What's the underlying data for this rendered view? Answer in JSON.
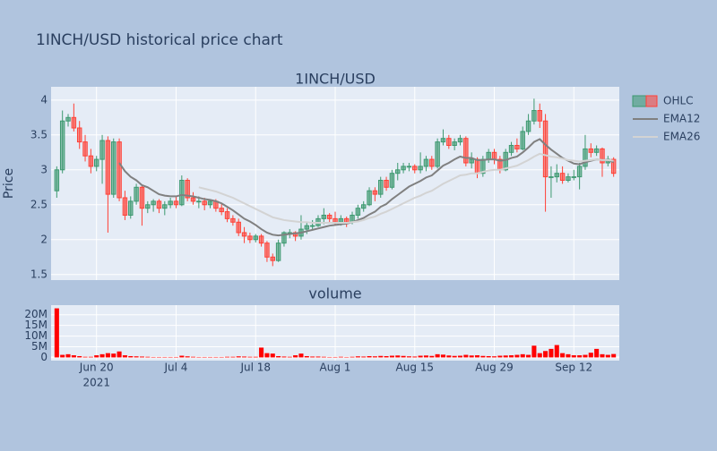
{
  "chart_data": {
    "type": "candlestick",
    "title": "1INCH/USD historical price chart",
    "panel_title": "1INCH/USD",
    "ylabel": "Price",
    "x": [
      "2021-06-13",
      "2021-06-14",
      "2021-06-15",
      "2021-06-16",
      "2021-06-17",
      "2021-06-18",
      "2021-06-19",
      "2021-06-20",
      "2021-06-21",
      "2021-06-22",
      "2021-06-23",
      "2021-06-24",
      "2021-06-25",
      "2021-06-26",
      "2021-06-27",
      "2021-06-28",
      "2021-06-29",
      "2021-06-30",
      "2021-07-01",
      "2021-07-02",
      "2021-07-03",
      "2021-07-04",
      "2021-07-05",
      "2021-07-06",
      "2021-07-07",
      "2021-07-08",
      "2021-07-09",
      "2021-07-10",
      "2021-07-11",
      "2021-07-12",
      "2021-07-13",
      "2021-07-14",
      "2021-07-15",
      "2021-07-16",
      "2021-07-17",
      "2021-07-18",
      "2021-07-19",
      "2021-07-20",
      "2021-07-21",
      "2021-07-22",
      "2021-07-23",
      "2021-07-24",
      "2021-07-25",
      "2021-07-26",
      "2021-07-27",
      "2021-07-28",
      "2021-07-29",
      "2021-07-30",
      "2021-07-31",
      "2021-08-01",
      "2021-08-02",
      "2021-08-03",
      "2021-08-04",
      "2021-08-05",
      "2021-08-06",
      "2021-08-07",
      "2021-08-08",
      "2021-08-09",
      "2021-08-10",
      "2021-08-11",
      "2021-08-12",
      "2021-08-13",
      "2021-08-14",
      "2021-08-15",
      "2021-08-16",
      "2021-08-17",
      "2021-08-18",
      "2021-08-19",
      "2021-08-20",
      "2021-08-21",
      "2021-08-22",
      "2021-08-23",
      "2021-08-24",
      "2021-08-25",
      "2021-08-26",
      "2021-08-27",
      "2021-08-28",
      "2021-08-29",
      "2021-08-30",
      "2021-08-31",
      "2021-09-01",
      "2021-09-02",
      "2021-09-03",
      "2021-09-04",
      "2021-09-05",
      "2021-09-06",
      "2021-09-07",
      "2021-09-08",
      "2021-09-09",
      "2021-09-10",
      "2021-09-11",
      "2021-09-12",
      "2021-09-13",
      "2021-09-14",
      "2021-09-15",
      "2021-09-16",
      "2021-09-17",
      "2021-09-18",
      "2021-09-19"
    ],
    "ohlc": {
      "name": "OHLC",
      "increasing_color": "#3d9970",
      "decreasing_color": "#ff4136",
      "open": [
        2.7,
        3.0,
        3.7,
        3.75,
        3.6,
        3.4,
        3.2,
        3.05,
        3.15,
        3.42,
        2.65,
        3.4,
        2.6,
        2.35,
        2.55,
        2.75,
        2.45,
        2.5,
        2.55,
        2.45,
        2.5,
        2.55,
        2.5,
        2.85,
        2.6,
        2.55,
        2.55,
        2.5,
        2.55,
        2.45,
        2.4,
        2.3,
        2.25,
        2.1,
        2.05,
        2.0,
        2.05,
        1.95,
        1.75,
        1.7,
        1.95,
        2.1,
        2.1,
        2.05,
        2.15,
        2.2,
        2.2,
        2.3,
        2.35,
        2.3,
        2.25,
        2.3,
        2.25,
        2.35,
        2.45,
        2.5,
        2.7,
        2.65,
        2.85,
        2.75,
        2.95,
        3.0,
        3.05,
        3.05,
        3.0,
        3.05,
        3.15,
        3.05,
        3.4,
        3.45,
        3.35,
        3.4,
        3.45,
        3.1,
        3.15,
        2.95,
        3.15,
        3.25,
        3.15,
        3.0,
        3.25,
        3.35,
        3.3,
        3.55,
        3.7,
        3.85,
        3.7,
        2.9,
        2.9,
        2.95,
        2.85,
        2.9,
        2.9,
        3.05,
        3.3,
        3.25,
        3.3,
        3.1,
        3.15
      ],
      "high": [
        3.05,
        3.85,
        3.8,
        3.95,
        3.7,
        3.5,
        3.3,
        3.2,
        3.5,
        3.48,
        3.45,
        3.45,
        2.7,
        2.62,
        2.8,
        2.78,
        2.55,
        2.58,
        2.58,
        2.55,
        2.6,
        2.62,
        2.92,
        2.88,
        2.68,
        2.62,
        2.6,
        2.58,
        2.58,
        2.52,
        2.45,
        2.35,
        2.3,
        2.18,
        2.1,
        2.08,
        2.08,
        1.98,
        1.8,
        2.0,
        2.12,
        2.15,
        2.12,
        2.35,
        2.25,
        2.28,
        2.35,
        2.45,
        2.38,
        2.4,
        2.35,
        2.33,
        2.4,
        2.5,
        2.55,
        2.75,
        2.75,
        2.9,
        2.9,
        3.0,
        3.1,
        3.1,
        3.1,
        3.08,
        3.25,
        3.2,
        3.2,
        3.45,
        3.58,
        3.5,
        3.45,
        3.5,
        3.48,
        3.25,
        3.18,
        3.2,
        3.3,
        3.3,
        3.2,
        3.3,
        3.4,
        3.45,
        3.62,
        3.8,
        4.02,
        3.95,
        3.8,
        3.05,
        3.08,
        3.05,
        2.95,
        3.0,
        3.1,
        3.5,
        3.38,
        3.35,
        3.32,
        3.2,
        3.18
      ],
      "low": [
        2.6,
        2.95,
        3.62,
        3.55,
        3.3,
        3.12,
        2.95,
        2.98,
        2.8,
        2.1,
        2.6,
        2.55,
        2.28,
        2.3,
        2.5,
        2.2,
        2.38,
        2.4,
        2.38,
        2.35,
        2.45,
        2.45,
        2.48,
        2.55,
        2.5,
        2.45,
        2.42,
        2.45,
        2.4,
        2.35,
        2.25,
        2.2,
        2.05,
        1.95,
        1.95,
        1.96,
        1.9,
        1.68,
        1.62,
        1.68,
        1.9,
        2.02,
        1.98,
        2.0,
        2.08,
        2.15,
        2.18,
        2.22,
        2.25,
        2.2,
        2.2,
        2.18,
        2.22,
        2.3,
        2.4,
        2.48,
        2.55,
        2.6,
        2.7,
        2.72,
        2.85,
        2.95,
        2.98,
        2.95,
        2.95,
        2.98,
        3.0,
        3.02,
        3.35,
        3.3,
        3.28,
        3.35,
        3.05,
        3.02,
        2.88,
        2.9,
        3.1,
        3.08,
        2.95,
        2.98,
        3.2,
        3.25,
        3.28,
        3.5,
        3.65,
        3.6,
        2.4,
        2.6,
        2.82,
        2.8,
        2.82,
        2.85,
        2.72,
        3.0,
        3.18,
        3.2,
        2.9,
        3.05,
        2.9
      ],
      "close": [
        3.0,
        3.7,
        3.75,
        3.6,
        3.4,
        3.2,
        3.05,
        3.15,
        3.42,
        2.65,
        3.4,
        2.6,
        2.35,
        2.55,
        2.75,
        2.45,
        2.5,
        2.55,
        2.45,
        2.5,
        2.55,
        2.5,
        2.85,
        2.6,
        2.55,
        2.55,
        2.5,
        2.55,
        2.45,
        2.4,
        2.3,
        2.25,
        2.1,
        2.05,
        2.0,
        2.05,
        1.95,
        1.75,
        1.7,
        1.95,
        2.1,
        2.1,
        2.05,
        2.15,
        2.2,
        2.2,
        2.3,
        2.35,
        2.3,
        2.25,
        2.3,
        2.25,
        2.35,
        2.45,
        2.5,
        2.7,
        2.65,
        2.85,
        2.75,
        2.95,
        3.0,
        3.05,
        3.05,
        3.0,
        3.05,
        3.15,
        3.05,
        3.4,
        3.45,
        3.35,
        3.4,
        3.45,
        3.1,
        3.15,
        2.95,
        3.15,
        3.25,
        3.15,
        3.0,
        3.25,
        3.35,
        3.3,
        3.55,
        3.7,
        3.85,
        3.7,
        2.9,
        2.9,
        2.95,
        2.85,
        2.9,
        2.9,
        3.05,
        3.3,
        3.25,
        3.3,
        3.1,
        3.15,
        2.95
      ]
    },
    "series": [
      {
        "name": "EMA12",
        "color": "#808080",
        "values": [
          null,
          null,
          null,
          null,
          null,
          null,
          null,
          null,
          null,
          null,
          null,
          3.1,
          2.98,
          2.9,
          2.85,
          2.78,
          2.75,
          2.7,
          2.65,
          2.63,
          2.62,
          2.62,
          2.64,
          2.63,
          2.62,
          2.6,
          2.58,
          2.57,
          2.55,
          2.52,
          2.47,
          2.42,
          2.36,
          2.3,
          2.26,
          2.21,
          2.15,
          2.1,
          2.07,
          2.06,
          2.07,
          2.08,
          2.09,
          2.1,
          2.12,
          2.14,
          2.16,
          2.18,
          2.2,
          2.21,
          2.22,
          2.23,
          2.25,
          2.28,
          2.31,
          2.36,
          2.4,
          2.47,
          2.51,
          2.58,
          2.64,
          2.7,
          2.76,
          2.8,
          2.84,
          2.89,
          2.92,
          2.99,
          3.06,
          3.1,
          3.15,
          3.19,
          3.17,
          3.17,
          3.14,
          3.14,
          3.15,
          3.15,
          3.13,
          3.14,
          3.17,
          3.19,
          3.25,
          3.32,
          3.4,
          3.44,
          3.36,
          3.29,
          3.23,
          3.17,
          3.13,
          3.09,
          3.08,
          3.11,
          3.13,
          3.15,
          3.14,
          3.14,
          3.11
        ]
      },
      {
        "name": "EMA26",
        "color": "#d3d3d3",
        "values": [
          null,
          null,
          null,
          null,
          null,
          null,
          null,
          null,
          null,
          null,
          null,
          null,
          null,
          null,
          null,
          null,
          null,
          null,
          null,
          null,
          null,
          null,
          null,
          null,
          null,
          2.75,
          2.73,
          2.71,
          2.69,
          2.66,
          2.63,
          2.6,
          2.56,
          2.52,
          2.48,
          2.44,
          2.4,
          2.36,
          2.32,
          2.3,
          2.28,
          2.27,
          2.26,
          2.25,
          2.25,
          2.24,
          2.24,
          2.24,
          2.24,
          2.24,
          2.24,
          2.24,
          2.25,
          2.26,
          2.28,
          2.31,
          2.33,
          2.37,
          2.4,
          2.44,
          2.48,
          2.52,
          2.56,
          2.6,
          2.63,
          2.67,
          2.7,
          2.75,
          2.8,
          2.84,
          2.88,
          2.92,
          2.93,
          2.95,
          2.95,
          2.97,
          2.99,
          3.0,
          3.0,
          3.02,
          3.04,
          3.06,
          3.1,
          3.14,
          3.19,
          3.23,
          3.21,
          3.19,
          3.18,
          3.16,
          3.14,
          3.13,
          3.12,
          3.13,
          3.14,
          3.15,
          3.14,
          3.14,
          3.13
        ]
      }
    ],
    "xlim": [
      "2021-06-12",
      "2021-09-20"
    ],
    "xticks": [
      {
        "value": "2021-06-20",
        "label": "Jun 20"
      },
      {
        "value": "2021-07-04",
        "label": "Jul 4"
      },
      {
        "value": "2021-07-18",
        "label": "Jul 18"
      },
      {
        "value": "2021-08-01",
        "label": "Aug 1"
      },
      {
        "value": "2021-08-15",
        "label": "Aug 15"
      },
      {
        "value": "2021-08-29",
        "label": "Aug 29"
      },
      {
        "value": "2021-09-12",
        "label": "Sep 12"
      }
    ],
    "xtick_year": "2021",
    "ylim": [
      1.42,
      4.19
    ],
    "yticks": [
      1.5,
      2,
      2.5,
      3,
      3.5,
      4
    ],
    "grid": true,
    "volume": {
      "title": "volume",
      "color": "#ff0000",
      "values": [
        23000000,
        1200000,
        1500000,
        1000000,
        600000,
        300000,
        300000,
        1000000,
        1500000,
        2000000,
        1800000,
        2800000,
        1000000,
        600000,
        500000,
        400000,
        300000,
        200000,
        200000,
        200000,
        200000,
        200000,
        800000,
        500000,
        300000,
        200000,
        200000,
        200000,
        200000,
        200000,
        300000,
        300000,
        500000,
        400000,
        300000,
        300000,
        4600000,
        2000000,
        1800000,
        600000,
        400000,
        300000,
        1000000,
        1800000,
        600000,
        400000,
        400000,
        300000,
        200000,
        200000,
        300000,
        200000,
        300000,
        500000,
        400000,
        600000,
        500000,
        700000,
        600000,
        800000,
        900000,
        700000,
        500000,
        400000,
        800000,
        900000,
        700000,
        1500000,
        1300000,
        900000,
        700000,
        800000,
        1200000,
        900000,
        1000000,
        700000,
        600000,
        500000,
        800000,
        900000,
        1000000,
        1200000,
        1500000,
        1200000,
        5500000,
        2000000,
        3000000,
        4000000,
        5800000,
        2000000,
        1500000,
        1000000,
        1000000,
        1200000,
        2200000,
        4000000,
        1500000,
        1200000,
        1600000
      ],
      "ylim": [
        -1500000,
        24500000
      ],
      "yticks": [
        0,
        {
          "value": 5000000,
          "label": "5M"
        },
        {
          "value": 10000000,
          "label": "10M"
        },
        {
          "value": 15000000,
          "label": "15M"
        },
        {
          "value": 20000000,
          "label": "20M"
        }
      ]
    }
  }
}
